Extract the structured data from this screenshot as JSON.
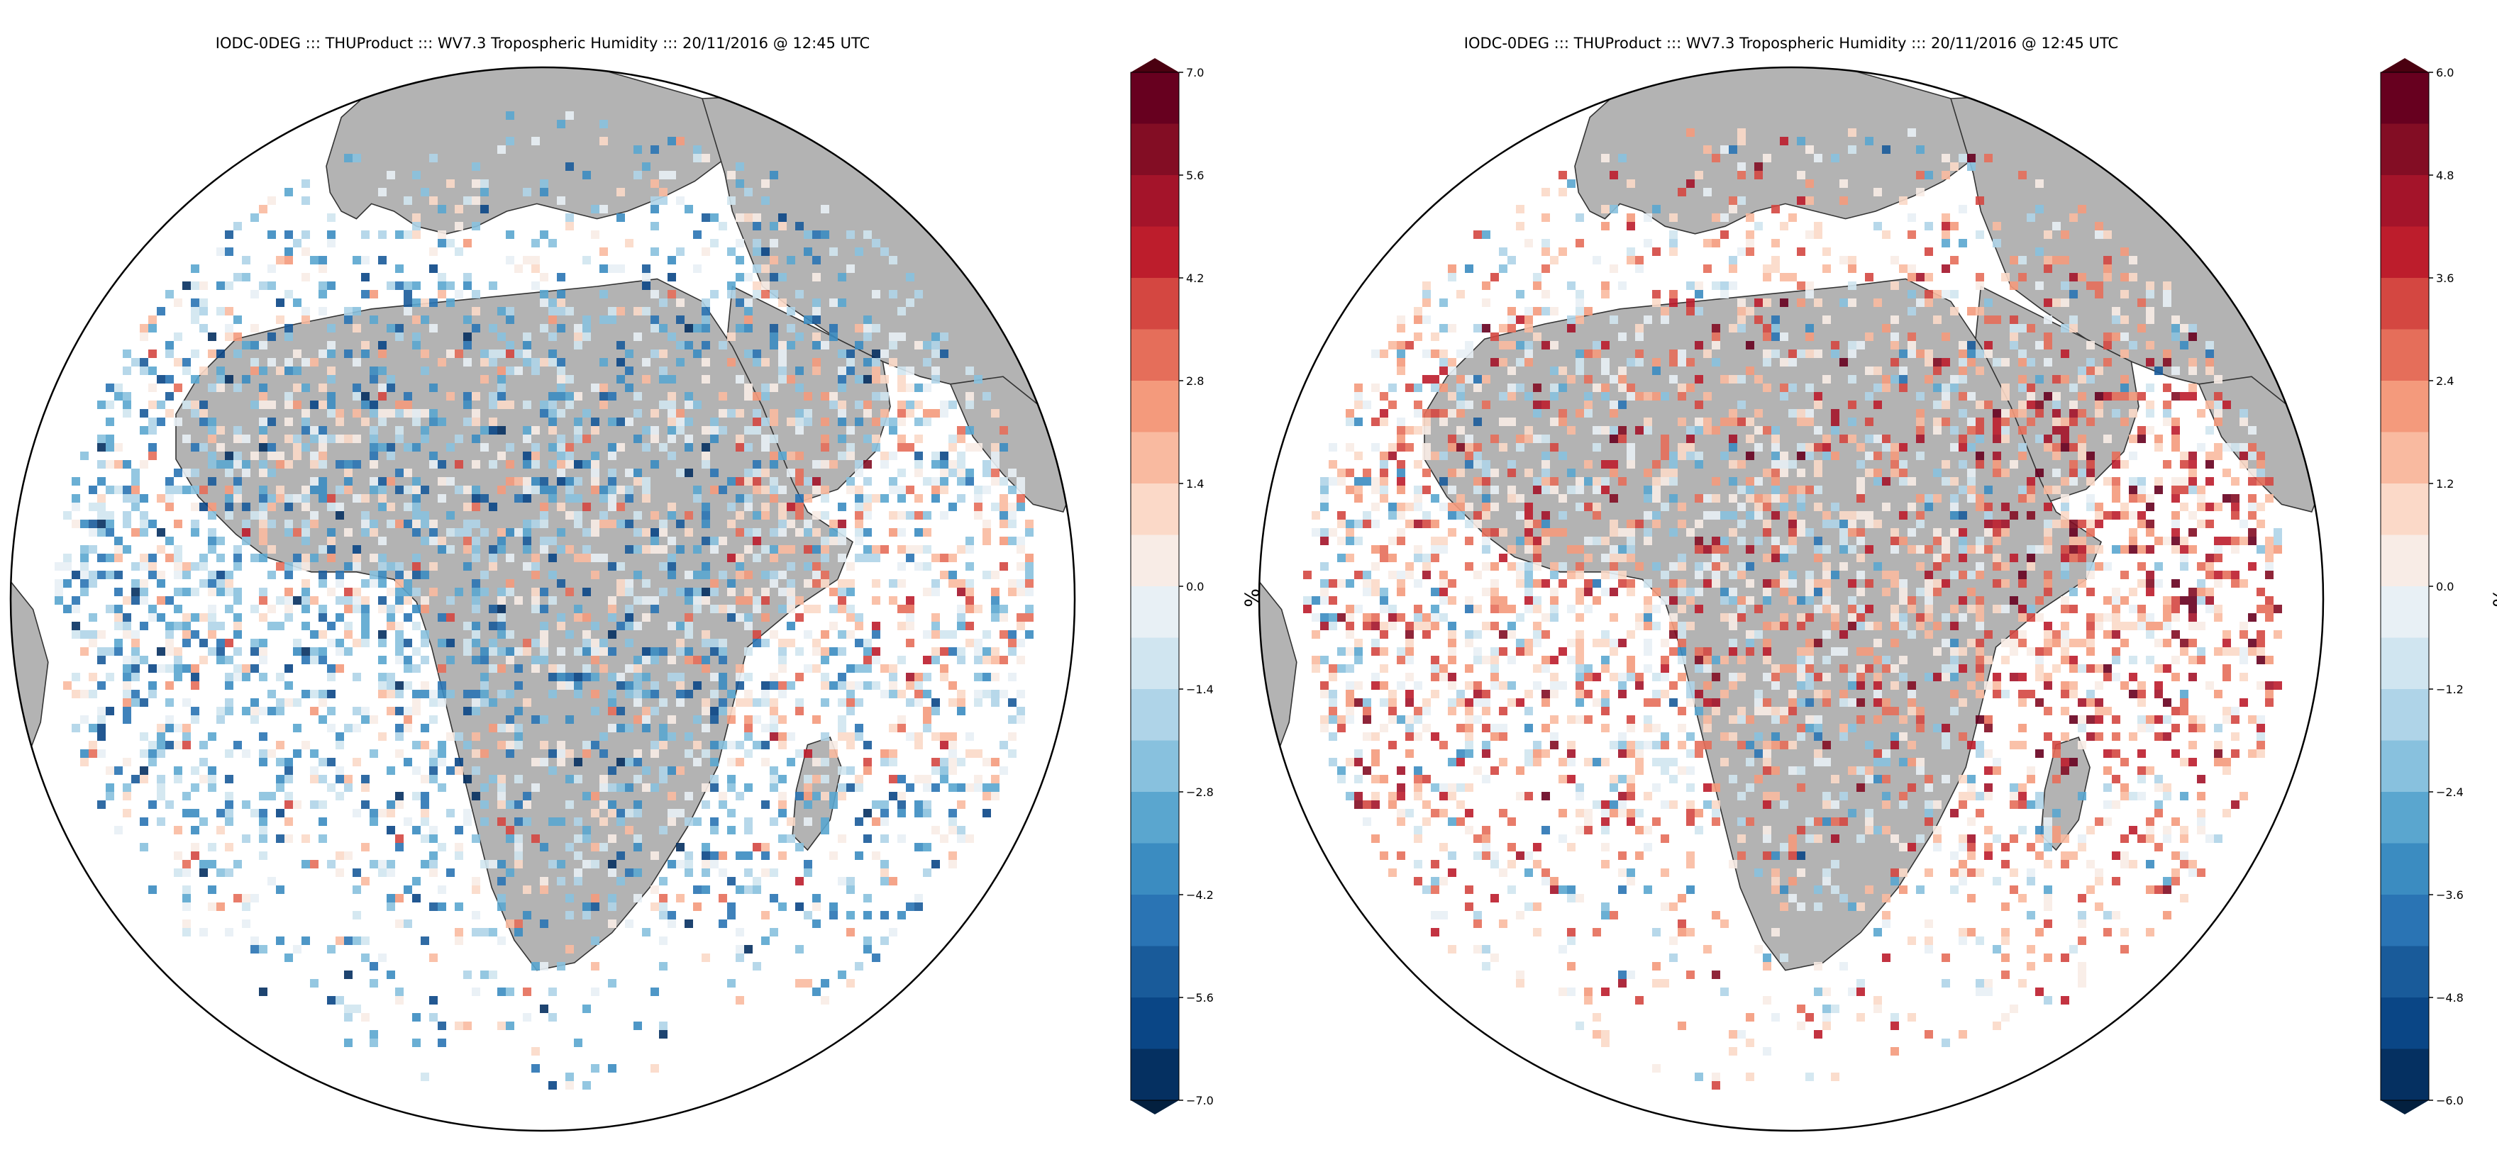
{
  "panels": [
    {
      "title": "IODC-0DEG ::: THUProduct ::: WV7.3 Tropospheric Humidity ::: 20/11/2016 @ 12:45 UTC",
      "colorbar": {
        "ticks": [
          "7.0",
          "5.6",
          "4.2",
          "2.8",
          "1.4",
          "0.0",
          "−1.4",
          "−2.8",
          "−4.2",
          "−5.6",
          "−7.0"
        ],
        "unit": "%"
      }
    },
    {
      "title": "IODC-0DEG ::: THUProduct ::: WV7.3 Tropospheric Humidity ::: 20/11/2016 @ 12:45 UTC",
      "colorbar": {
        "ticks": [
          "6.0",
          "4.8",
          "3.6",
          "2.4",
          "1.2",
          "0.0",
          "−1.2",
          "−2.4",
          "−3.6",
          "−4.8",
          "−6.0"
        ],
        "unit": "%"
      }
    }
  ],
  "colors": {
    "land": "#b3b3b3",
    "ocean": "#ffffff",
    "diverging_bins": [
      "#053061",
      "#0a4686",
      "#195b9a",
      "#2a74b4",
      "#3b8cc1",
      "#5aa6cf",
      "#88c1de",
      "#afd4e8",
      "#d0e5f0",
      "#e8f0f5",
      "#f8ece6",
      "#fbd9c8",
      "#f9baa0",
      "#f49a7c",
      "#e56e5a",
      "#d44741",
      "#bd1d2c",
      "#a4142a",
      "#830d24",
      "#67001f"
    ],
    "over": "#4a0010",
    "under": "#03203f"
  }
}
